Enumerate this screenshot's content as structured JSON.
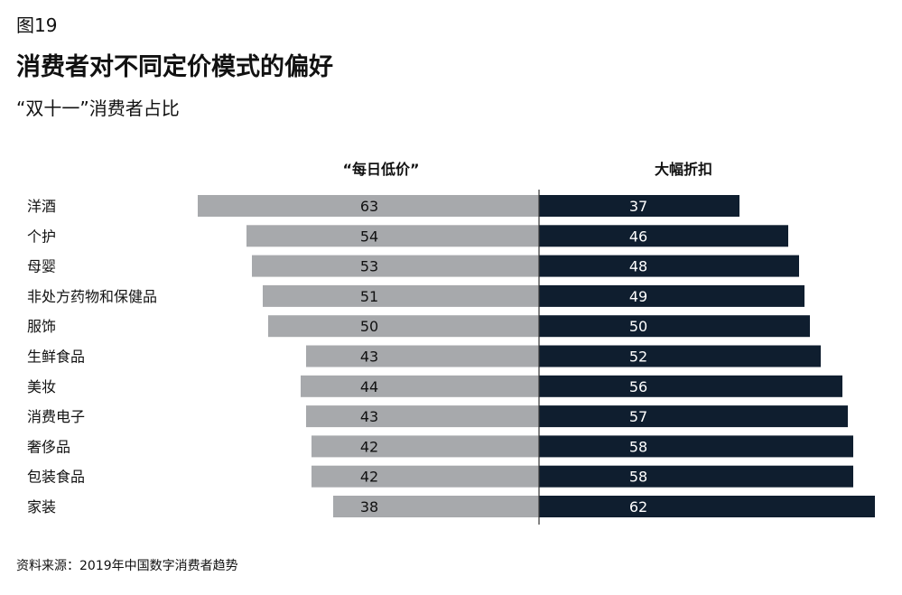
{
  "header": {
    "figure_label": "图19",
    "title": "消费者对不同定价模式的偏好",
    "subtitle": "“双十一”消费者占比"
  },
  "footer": {
    "source": "资料来源：2019年中国数字消费者趋势"
  },
  "colors": {
    "left_bar": "#a7a9ac",
    "right_bar": "#0f1e2f",
    "left_text": "#111111",
    "right_text": "#ffffff",
    "divider": "#333333"
  },
  "chart_data": {
    "type": "bar",
    "orientation": "horizontal-diverging",
    "title": "消费者对不同定价模式的偏好",
    "subtitle": "“双十一”消费者占比",
    "categories": [
      "洋酒",
      "个护",
      "母婴",
      "非处方药物和保健品",
      "服饰",
      "生鲜食品",
      "美妆",
      "消费电子",
      "奢侈品",
      "包装食品",
      "家装"
    ],
    "series": [
      {
        "name": "“每日低价”",
        "values": [
          63,
          54,
          53,
          51,
          50,
          43,
          44,
          43,
          42,
          42,
          38
        ]
      },
      {
        "name": "大幅折扣",
        "values": [
          37,
          46,
          48,
          49,
          50,
          52,
          56,
          57,
          58,
          58,
          62
        ]
      }
    ],
    "xlim": [
      0,
      100
    ],
    "grid": false,
    "legend": "top"
  }
}
